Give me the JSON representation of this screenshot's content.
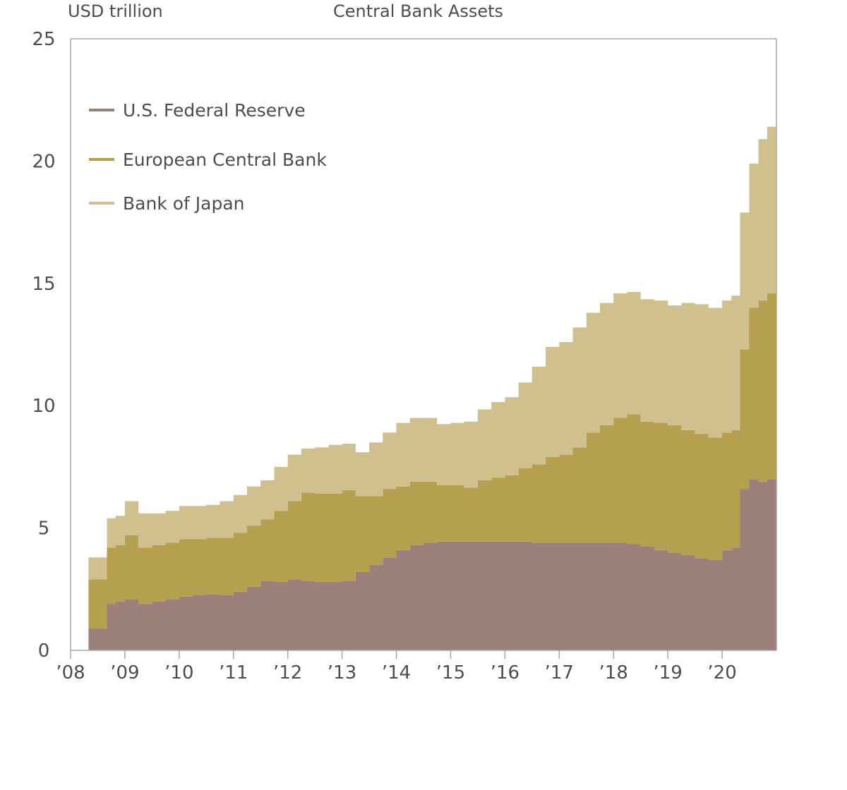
{
  "chart_data": {
    "type": "area",
    "stacked": true,
    "title": "Central Bank Assets",
    "unit_label": "USD trillion",
    "xlabel": "",
    "ylabel": "USD trillion",
    "ylim": [
      0,
      25
    ],
    "xlim": [
      2008.0,
      2021.0
    ],
    "y_ticks": [
      0,
      5,
      10,
      15,
      20,
      25
    ],
    "x_ticks": [
      {
        "label": "’08",
        "value": 2008
      },
      {
        "label": "’09",
        "value": 2009
      },
      {
        "label": "’10",
        "value": 2010
      },
      {
        "label": "’11",
        "value": 2011
      },
      {
        "label": "’12",
        "value": 2012
      },
      {
        "label": "’13",
        "value": 2013
      },
      {
        "label": "’14",
        "value": 2014
      },
      {
        "label": "’15",
        "value": 2015
      },
      {
        "label": "’16",
        "value": 2016
      },
      {
        "label": "’17",
        "value": 2017
      },
      {
        "label": "’18",
        "value": 2018
      },
      {
        "label": "’19",
        "value": 2019
      },
      {
        "label": "’20",
        "value": 2020
      }
    ],
    "grid": false,
    "legend_position": "top-left",
    "x": [
      2008.33,
      2008.5,
      2008.67,
      2008.83,
      2009.0,
      2009.25,
      2009.5,
      2009.75,
      2010.0,
      2010.25,
      2010.5,
      2010.75,
      2011.0,
      2011.25,
      2011.5,
      2011.75,
      2012.0,
      2012.25,
      2012.5,
      2012.75,
      2013.0,
      2013.25,
      2013.5,
      2013.75,
      2014.0,
      2014.25,
      2014.5,
      2014.75,
      2015.0,
      2015.25,
      2015.5,
      2015.75,
      2016.0,
      2016.25,
      2016.5,
      2016.75,
      2017.0,
      2017.25,
      2017.5,
      2017.75,
      2018.0,
      2018.25,
      2018.5,
      2018.75,
      2019.0,
      2019.25,
      2019.5,
      2019.75,
      2020.0,
      2020.17,
      2020.33,
      2020.5,
      2020.67,
      2020.83,
      2021.0
    ],
    "series": [
      {
        "name": "U.S. Federal Reserve",
        "values": [
          0.9,
          0.9,
          1.9,
          2.0,
          2.1,
          1.9,
          2.0,
          2.1,
          2.2,
          2.25,
          2.3,
          2.25,
          2.4,
          2.6,
          2.85,
          2.8,
          2.9,
          2.85,
          2.8,
          2.8,
          2.85,
          3.2,
          3.5,
          3.8,
          4.1,
          4.3,
          4.4,
          4.45,
          4.45,
          4.45,
          4.45,
          4.45,
          4.45,
          4.45,
          4.4,
          4.4,
          4.4,
          4.4,
          4.4,
          4.4,
          4.4,
          4.35,
          4.25,
          4.1,
          4.0,
          3.9,
          3.75,
          3.7,
          4.1,
          4.2,
          6.6,
          7.0,
          6.9,
          7.0,
          7.1
        ]
      },
      {
        "name": "European Central Bank",
        "values": [
          2.0,
          2.0,
          2.3,
          2.3,
          2.6,
          2.3,
          2.3,
          2.3,
          2.35,
          2.3,
          2.3,
          2.35,
          2.4,
          2.5,
          2.5,
          2.9,
          3.2,
          3.6,
          3.6,
          3.6,
          3.7,
          3.1,
          2.8,
          2.8,
          2.6,
          2.6,
          2.5,
          2.3,
          2.3,
          2.2,
          2.5,
          2.6,
          2.7,
          3.0,
          3.2,
          3.5,
          3.6,
          3.9,
          4.5,
          4.8,
          5.1,
          5.3,
          5.1,
          5.2,
          5.2,
          5.1,
          5.1,
          5.0,
          4.8,
          4.8,
          5.7,
          7.0,
          7.4,
          7.6,
          7.9
        ]
      },
      {
        "name": "Bank of Japan",
        "values": [
          0.9,
          0.9,
          1.2,
          1.2,
          1.4,
          1.4,
          1.3,
          1.3,
          1.35,
          1.35,
          1.35,
          1.5,
          1.55,
          1.6,
          1.6,
          1.8,
          1.9,
          1.8,
          1.9,
          2.0,
          1.9,
          1.8,
          2.2,
          2.3,
          2.6,
          2.6,
          2.6,
          2.5,
          2.55,
          2.7,
          2.9,
          3.1,
          3.2,
          3.5,
          4.0,
          4.5,
          4.6,
          4.9,
          4.9,
          5.0,
          5.1,
          5.0,
          5.0,
          5.0,
          4.9,
          5.2,
          5.3,
          5.3,
          5.4,
          5.5,
          5.6,
          5.9,
          6.6,
          6.8,
          6.7
        ]
      }
    ],
    "colors": [
      "#9b807b",
      "#b4a04e",
      "#cfc08d"
    ]
  },
  "axis_color": "#a6a6a6",
  "text_color": "#4d4d4f"
}
